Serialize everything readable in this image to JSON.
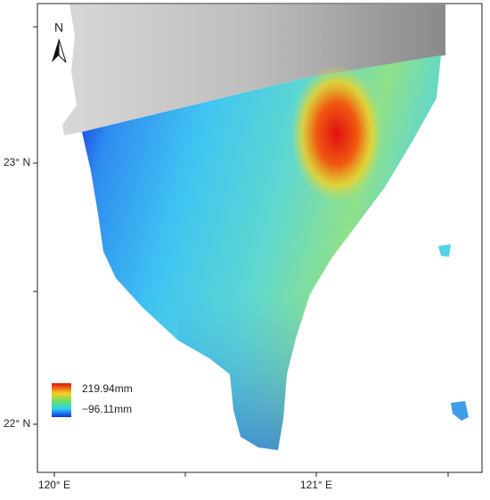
{
  "north_arrow": "N",
  "lat_labels": [
    "23° N",
    "22° N"
  ],
  "lon_labels": [
    "120° E",
    "121° E"
  ],
  "legend": {
    "max": "219.94mm",
    "min": "−96.11mm"
  }
}
